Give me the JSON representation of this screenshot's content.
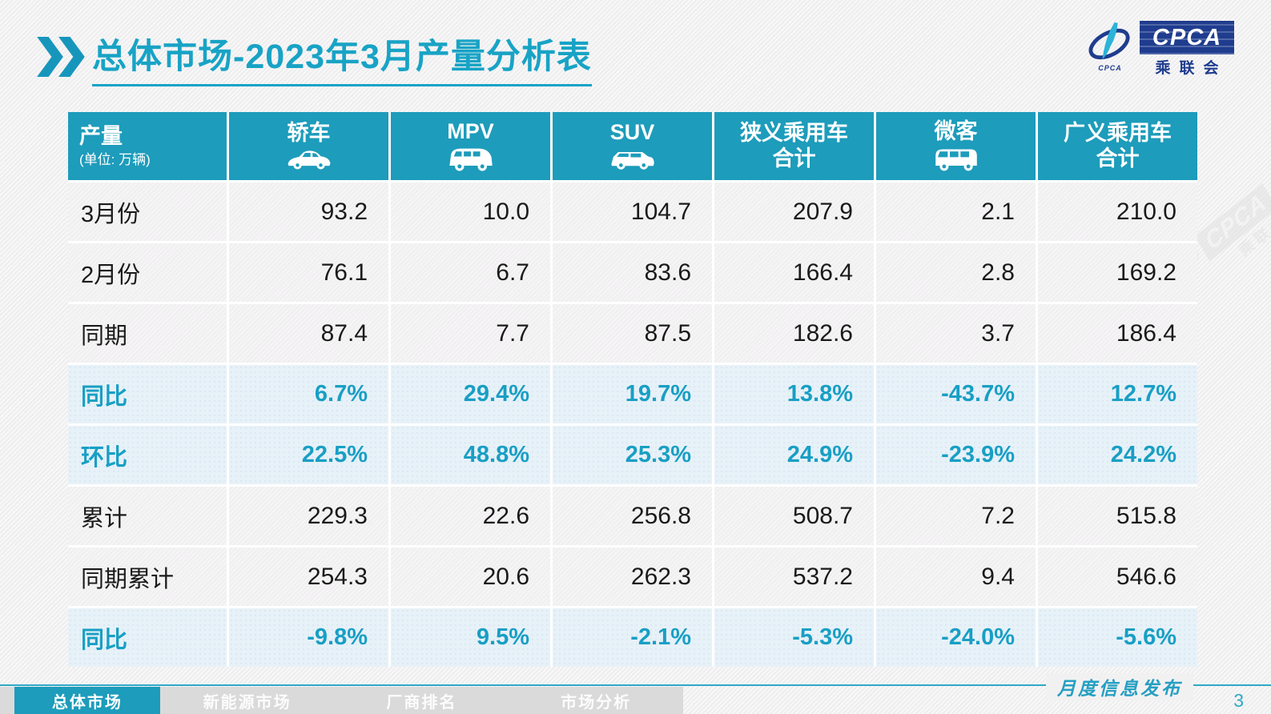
{
  "page": {
    "title": "总体市场-2023年3月产量分析表",
    "page_number": "3"
  },
  "logo": {
    "acronym": "CPCA",
    "chinese": "乘联会",
    "small_acronym": "CPCA"
  },
  "watermark": {
    "acronym": "CPCA",
    "chinese": "乘联会"
  },
  "table": {
    "unit_header": {
      "title": "产量",
      "unit": "(单位: 万辆)"
    },
    "columns": [
      {
        "key": "sedan",
        "label": "轿车",
        "icon": "sedan-car-icon"
      },
      {
        "key": "mpv",
        "label": "MPV",
        "icon": "mpv-car-icon"
      },
      {
        "key": "suv",
        "label": "SUV",
        "icon": "suv-car-icon"
      },
      {
        "key": "narrow-total",
        "label": "狭义乘用车\n合计",
        "icon": null
      },
      {
        "key": "microvan",
        "label": "微客",
        "icon": "microvan-car-icon"
      },
      {
        "key": "broad-total",
        "label": "广义乘用车\n合计",
        "icon": null
      }
    ],
    "rows": [
      {
        "label": "3月份",
        "type": "normal",
        "values": [
          "93.2",
          "10.0",
          "104.7",
          "207.9",
          "2.1",
          "210.0"
        ]
      },
      {
        "label": "2月份",
        "type": "normal",
        "values": [
          "76.1",
          "6.7",
          "83.6",
          "166.4",
          "2.8",
          "169.2"
        ]
      },
      {
        "label": "同期",
        "type": "normal",
        "values": [
          "87.4",
          "7.7",
          "87.5",
          "182.6",
          "3.7",
          "186.4"
        ]
      },
      {
        "label": "同比",
        "type": "percent",
        "values": [
          "6.7%",
          "29.4%",
          "19.7%",
          "13.8%",
          "-43.7%",
          "12.7%"
        ]
      },
      {
        "label": "环比",
        "type": "percent",
        "values": [
          "22.5%",
          "48.8%",
          "25.3%",
          "24.9%",
          "-23.9%",
          "24.2%"
        ]
      },
      {
        "label": "累计",
        "type": "normal",
        "values": [
          "229.3",
          "22.6",
          "256.8",
          "508.7",
          "7.2",
          "515.8"
        ]
      },
      {
        "label": "同期累计",
        "type": "normal",
        "values": [
          "254.3",
          "20.6",
          "262.3",
          "537.2",
          "9.4",
          "546.6"
        ]
      },
      {
        "label": "同比",
        "type": "percent",
        "values": [
          "-9.8%",
          "9.5%",
          "-2.1%",
          "-5.3%",
          "-24.0%",
          "-5.6%"
        ]
      }
    ]
  },
  "footer": {
    "ribbon_label": "月度信息发布",
    "tabs": [
      {
        "label": "总体市场",
        "active": true
      },
      {
        "label": "新能源市场",
        "active": false
      },
      {
        "label": "厂商排名",
        "active": false
      },
      {
        "label": "市场分析",
        "active": false
      }
    ]
  },
  "colors": {
    "header_teal": "#1D9CBB",
    "accent_teal_text": "#189FC4",
    "title_teal": "#18A3C5",
    "row_gray": "#F0EFF0",
    "row_blue": "#E7F1F8",
    "footer_line_teal": "#2FA9C6",
    "tab_strip_gray": "#DBDADB",
    "logo_dark_blue": "#1F3C8E",
    "logo_cyan": "#2BB3D9",
    "page_background": "#F2F1F2"
  }
}
